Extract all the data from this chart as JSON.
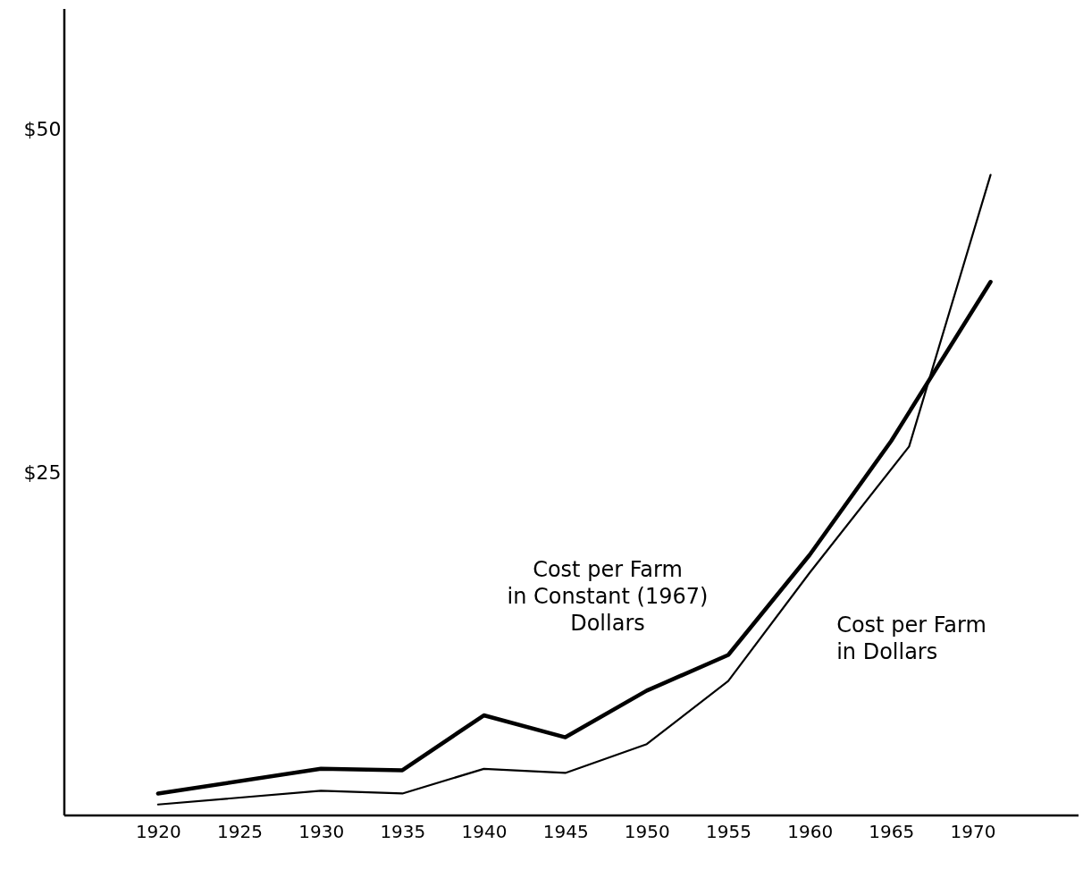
{
  "chart_data": {
    "type": "line",
    "xlim": [
      1914.25,
      1976.5
    ],
    "xticks": [
      1920,
      1925,
      1930,
      1935,
      1940,
      1945,
      1950,
      1955,
      1960,
      1965,
      1970
    ],
    "ylim": [
      0,
      58.8
    ],
    "yticks": [
      {
        "value": 25,
        "label": "$25"
      },
      {
        "value": 50,
        "label": "$50"
      }
    ],
    "grid": false,
    "legend": false,
    "marker": "none",
    "line_style": "solid",
    "series": [
      {
        "name": "Cost per Farm in Constant (1967) Dollars",
        "color": "#000000",
        "x": [
          1920,
          1930,
          1935,
          1940,
          1945,
          1950,
          1955,
          1960,
          1965,
          1971.1
        ],
        "values": [
          1.6,
          3.4,
          3.3,
          7.3,
          5.7,
          9.1,
          11.7,
          19.0,
          27.3,
          38.9
        ]
      },
      {
        "name": "Cost per Farm in Dollars",
        "color": "#000000",
        "x": [
          1920,
          1930,
          1935,
          1940,
          1945,
          1950,
          1955,
          1960,
          1966.1,
          1971.1
        ],
        "values": [
          0.8,
          1.8,
          1.6,
          3.4,
          3.1,
          5.2,
          9.8,
          17.7,
          26.9,
          46.7
        ]
      }
    ]
  }
}
